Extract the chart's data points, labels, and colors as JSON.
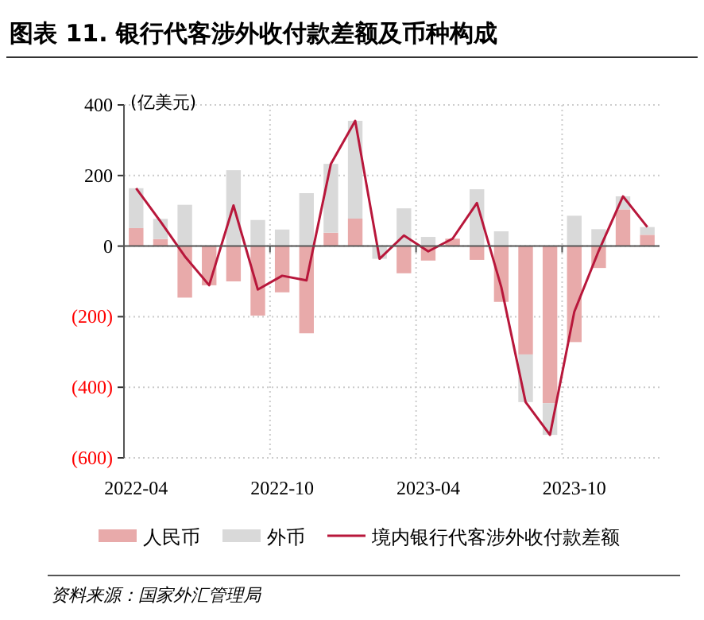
{
  "chart_data": {
    "type": "bar",
    "stacked": true,
    "title": "图表 11. 银行代客涉外收付款差额及币种构成",
    "ylabel": "(亿美元)",
    "categories": [
      "2022-04",
      null,
      null,
      null,
      null,
      null,
      "2022-10",
      null,
      null,
      null,
      null,
      null,
      "2023-04",
      null,
      null,
      null,
      null,
      null,
      "2023-10",
      null,
      null,
      null
    ],
    "series": [
      {
        "name": "人民币",
        "color": "#e8aaaa",
        "values": [
          51,
          20,
          -146,
          -111,
          -100,
          -197,
          -131,
          -247,
          38,
          78,
          0,
          -77,
          -41,
          21,
          -39,
          -158,
          -307,
          -445,
          -272,
          -62,
          104,
          32
        ]
      },
      {
        "name": "外币",
        "color": "#d9d9d9",
        "values": [
          113,
          57,
          117,
          0,
          215,
          74,
          47,
          150,
          195,
          277,
          -36,
          107,
          26,
          0,
          161,
          42,
          -135,
          -90,
          86,
          48,
          37,
          22
        ]
      },
      {
        "name": "境内银行代客涉外收付款差额",
        "type": "line",
        "color": "#b8173b",
        "values": [
          164,
          70,
          -29,
          -111,
          115,
          -123,
          -84,
          -97,
          233,
          355,
          -36,
          30,
          -15,
          21,
          122,
          -116,
          -442,
          -535,
          -186,
          -14,
          141,
          54
        ]
      }
    ],
    "ylim": [
      -600,
      400
    ],
    "yticks": [
      400,
      200,
      0,
      {
        "value": -200,
        "label": "(200)"
      },
      {
        "value": -400,
        "label": "(400)"
      },
      {
        "value": -600,
        "label": "(600)"
      }
    ],
    "grid": true,
    "legend": "bottom",
    "annotations": [
      "资料来源：国家外汇管理局"
    ]
  }
}
